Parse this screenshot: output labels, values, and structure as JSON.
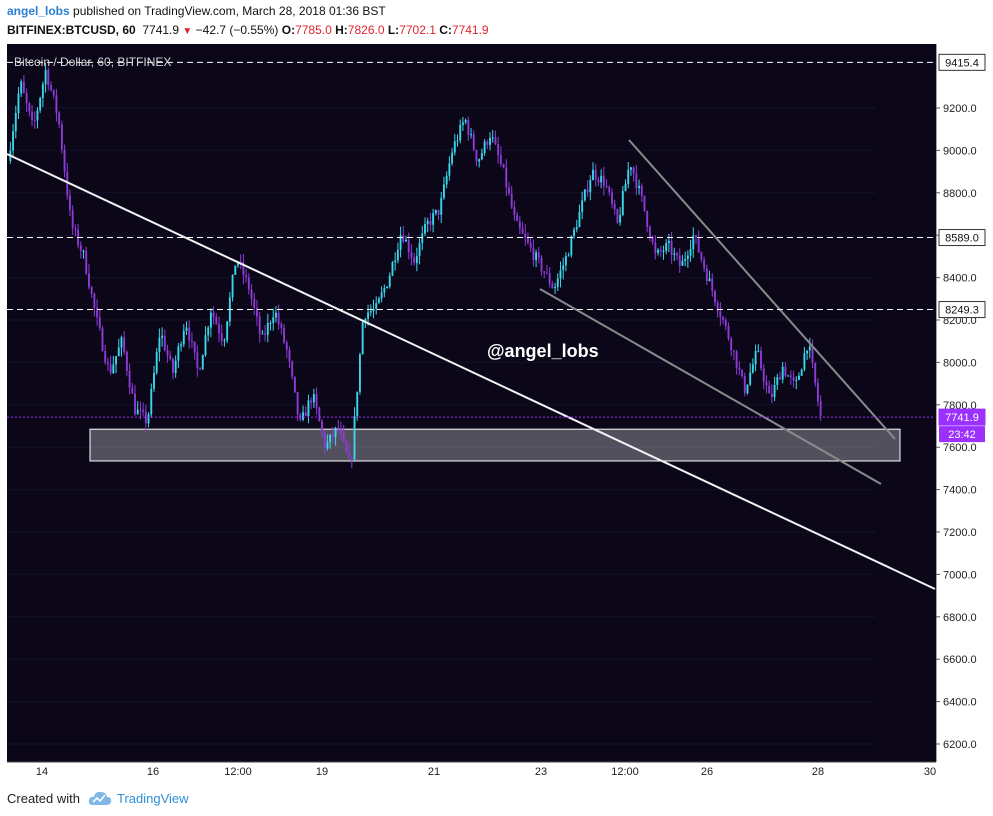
{
  "header": {
    "author": "angel_lobs",
    "published_text": " published on TradingView.com, March 28, 2018 01:36 BST",
    "symbol": "BITFINEX:BTCUSD, 60",
    "last": "7741.9",
    "change": "−42.7 (−0.55%)",
    "o_label": "O:",
    "o_value": "7785.0",
    "h_label": "H:",
    "h_value": "7826.0",
    "l_label": "L:",
    "l_value": "7702.1",
    "c_label": "C:",
    "c_value": "7741.9"
  },
  "chart_data": {
    "type": "candlestick",
    "title": "Bitcoin / Dollar, 60, BITFINEX",
    "watermark": "@angel_lobs",
    "ylim": [
      6100,
      9550
    ],
    "y_ticks": [
      "9200.0",
      "9000.0",
      "8800.0",
      "8600.0",
      "8400.0",
      "8200.0",
      "8000.0",
      "7800.0",
      "7600.0",
      "7400.0",
      "7200.0",
      "7000.0",
      "6800.0",
      "6600.0",
      "6400.0",
      "6200.0"
    ],
    "x_ticks": [
      "14",
      "16",
      "12:00",
      "19",
      "21",
      "23",
      "12:00",
      "26",
      "28",
      "30"
    ],
    "horizontal_levels": [
      {
        "value": 9415.4,
        "label": "9415.4",
        "style": "dashed",
        "color": "#ffffff"
      },
      {
        "value": 8589.0,
        "label": "8589.0",
        "style": "dashed",
        "color": "#ffffff"
      },
      {
        "value": 8249.3,
        "label": "8249.3",
        "style": "dashed",
        "color": "#ffffff"
      },
      {
        "value": 7741.9,
        "label": "7741.9",
        "style": "dotted",
        "color": "#9b30ff"
      }
    ],
    "countdown": "23:42",
    "support_zone": {
      "from": 7535,
      "to": 7685
    },
    "price_path": [
      [
        0,
        8950
      ],
      [
        1,
        9320
      ],
      [
        2,
        9100
      ],
      [
        3,
        9380
      ],
      [
        4,
        9150
      ],
      [
        5,
        8650
      ],
      [
        6,
        8500
      ],
      [
        7,
        8200
      ],
      [
        8,
        7950
      ],
      [
        9,
        8100
      ],
      [
        10,
        7780
      ],
      [
        11,
        7720
      ],
      [
        12,
        8150
      ],
      [
        13,
        7950
      ],
      [
        14,
        8200
      ],
      [
        15,
        7950
      ],
      [
        16,
        8250
      ],
      [
        17,
        8100
      ],
      [
        18,
        8500
      ],
      [
        19,
        8350
      ],
      [
        20,
        8100
      ],
      [
        21,
        8250
      ],
      [
        22,
        8050
      ],
      [
        23,
        7700
      ],
      [
        24,
        7850
      ],
      [
        25,
        7600
      ],
      [
        26,
        7690
      ],
      [
        27,
        7500
      ],
      [
        28,
        8230
      ],
      [
        29,
        8250
      ],
      [
        30,
        8400
      ],
      [
        31,
        8620
      ],
      [
        32,
        8480
      ],
      [
        33,
        8650
      ],
      [
        34,
        8720
      ],
      [
        35,
        9000
      ],
      [
        36,
        9150
      ],
      [
        37,
        8950
      ],
      [
        38,
        9080
      ],
      [
        39,
        8900
      ],
      [
        40,
        8650
      ],
      [
        41,
        8550
      ],
      [
        42,
        8450
      ],
      [
        43,
        8350
      ],
      [
        44,
        8500
      ],
      [
        45,
        8700
      ],
      [
        46,
        8900
      ],
      [
        47,
        8850
      ],
      [
        48,
        8650
      ],
      [
        49,
        8950
      ],
      [
        50,
        8750
      ],
      [
        51,
        8500
      ],
      [
        52,
        8550
      ],
      [
        53,
        8450
      ],
      [
        54,
        8600
      ],
      [
        55,
        8420
      ],
      [
        56,
        8250
      ],
      [
        57,
        8080
      ],
      [
        58,
        7870
      ],
      [
        59,
        8050
      ],
      [
        60,
        7820
      ],
      [
        61,
        7980
      ],
      [
        62,
        7880
      ],
      [
        63,
        8100
      ],
      [
        64,
        7742
      ]
    ]
  }
}
